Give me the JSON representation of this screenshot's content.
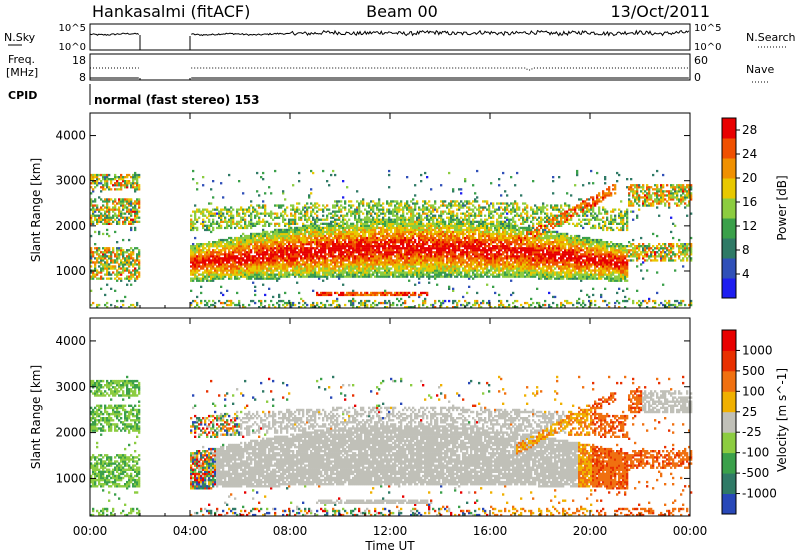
{
  "header": {
    "station": "Hankasalmi (fitACF)",
    "beam": "Beam 00",
    "date": "13/Oct/2011"
  },
  "noise_panel": {
    "left_label": "N.Sky",
    "right_label": "N.Search",
    "left_ticks": [
      "10^5",
      "10^0"
    ],
    "right_ticks": [
      "10^5",
      "10^0"
    ]
  },
  "freq_panel": {
    "left_label_1": "Freq.",
    "left_label_2": "[MHz]",
    "right_label": "Nave",
    "left_ticks": [
      "18",
      "8"
    ],
    "right_ticks": [
      "60",
      "0"
    ]
  },
  "cpid": {
    "label": "CPID",
    "value": "normal (fast stereo) 153"
  },
  "time_axis": {
    "ticks": [
      "00:00",
      "04:00",
      "08:00",
      "12:00",
      "16:00",
      "20:00",
      "00:00"
    ],
    "label": "Time UT"
  },
  "colors": {
    "no_data": "#ffffff",
    "ground_scatter": "#c0c0b8"
  },
  "chart_data": [
    {
      "type": "heatmap",
      "name": "power",
      "xlim_hours": [
        0,
        24
      ],
      "ylim": [
        180,
        4500
      ],
      "ylabel": "Slant Range [km]",
      "y_ticks": [
        1000,
        2000,
        3000,
        4000
      ],
      "colorbar": {
        "label": "Power [dB]",
        "tick_values": [
          4,
          8,
          12,
          16,
          20,
          24,
          28
        ],
        "tick_labels": [
          "4",
          "8",
          "12",
          "16",
          "20",
          "24",
          "28"
        ],
        "range": [
          0,
          30
        ],
        "colors": [
          "#1e1ef0",
          "#3050b8",
          "#2f7a66",
          "#3aa04a",
          "#8ccc40",
          "#e8c800",
          "#f09000",
          "#f05000",
          "#e80000"
        ]
      },
      "data_gaps_hours": [
        [
          2.0,
          4.0
        ]
      ]
    },
    {
      "type": "heatmap",
      "name": "velocity",
      "xlim_hours": [
        0,
        24
      ],
      "ylim": [
        180,
        4500
      ],
      "ylabel": "Slant Range [km]",
      "y_ticks": [
        1000,
        2000,
        3000,
        4000
      ],
      "colorbar": {
        "label": "Velocity [m s^-1]",
        "tick_labels": [
          "1000",
          "500",
          "100",
          "25",
          "-25",
          "-100",
          "-500",
          "-1000"
        ],
        "colors": [
          "#2848b8",
          "#2f7a66",
          "#3aa04a",
          "#8ccc40",
          "#c0c0b8",
          "#f0b000",
          "#f07010",
          "#e83000",
          "#e80000"
        ]
      },
      "data_gaps_hours": [
        [
          2.0,
          4.0
        ]
      ]
    }
  ]
}
